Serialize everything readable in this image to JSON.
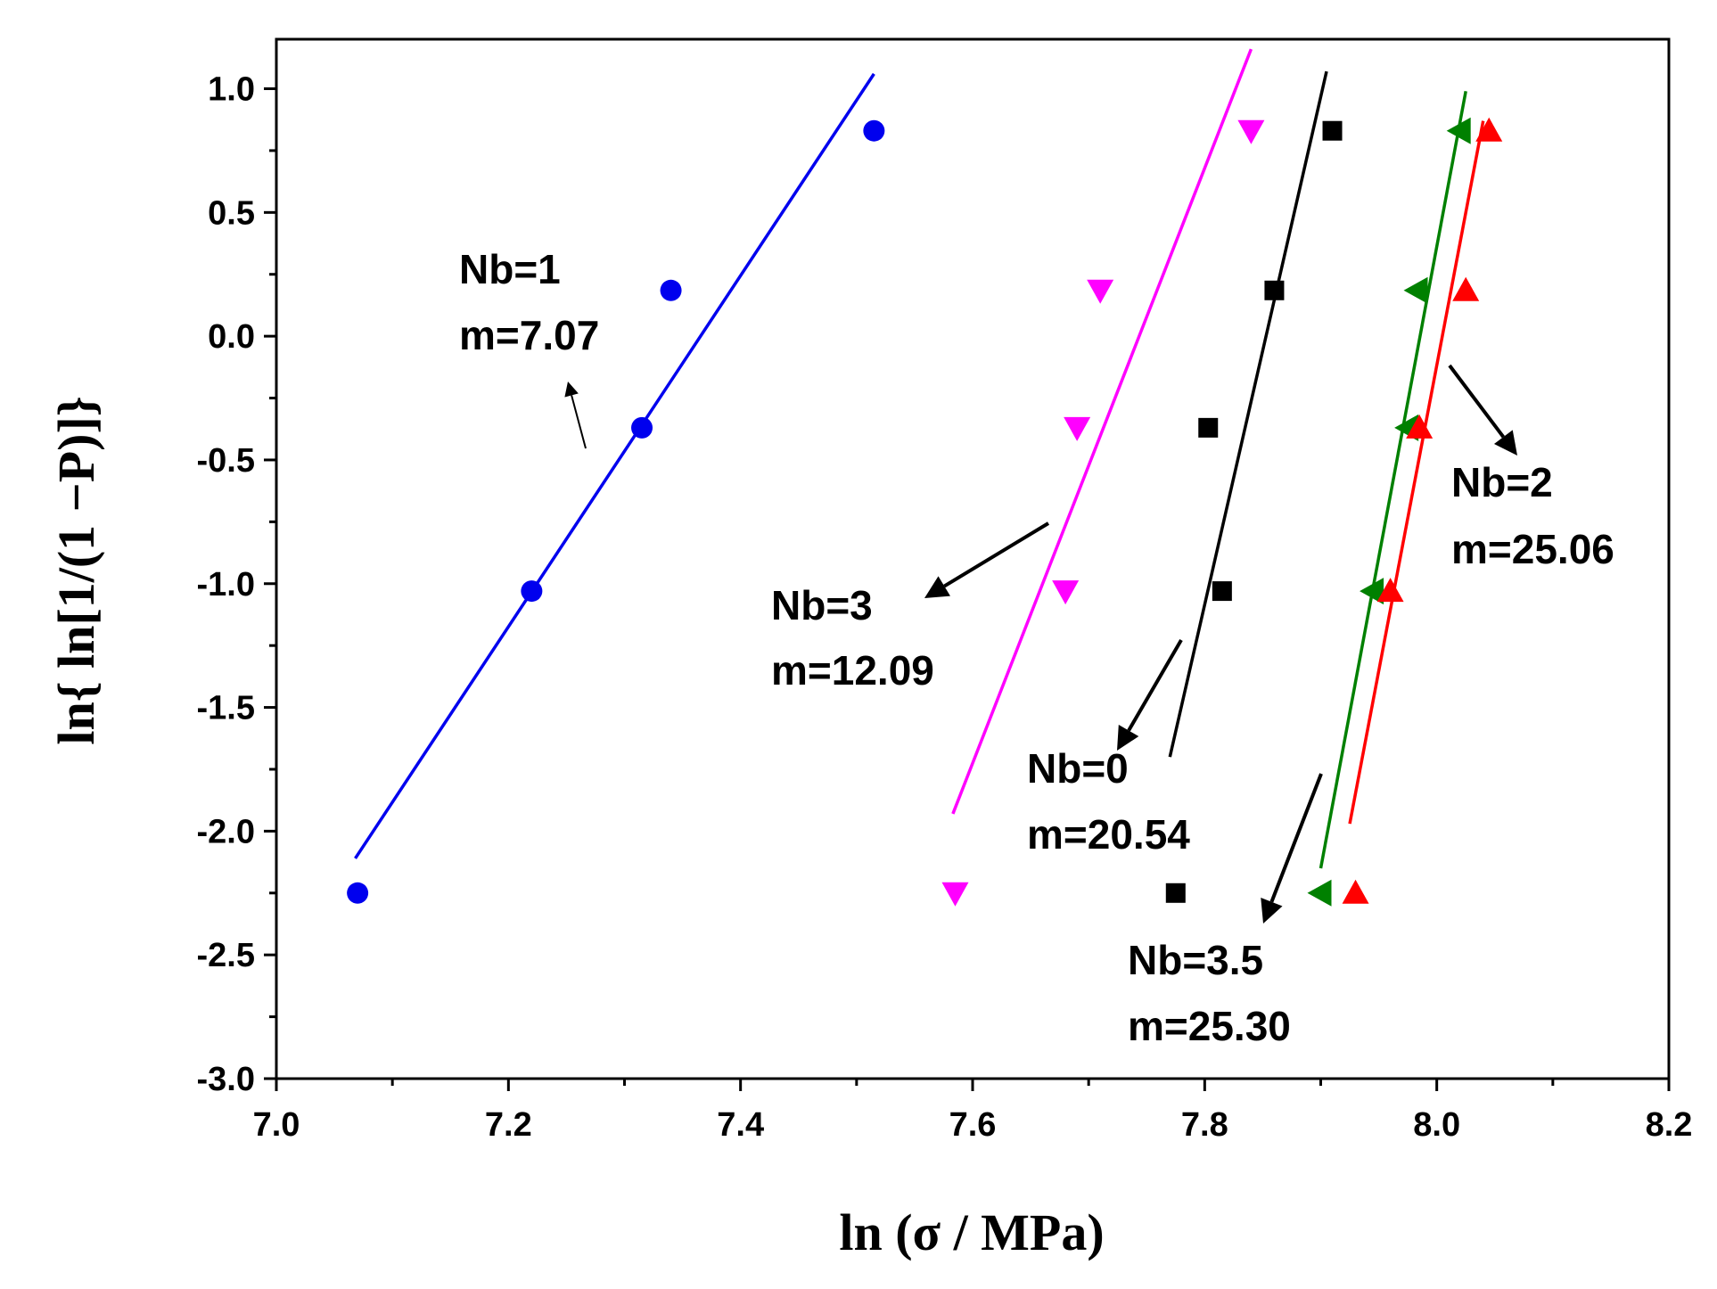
{
  "chart_data": {
    "type": "scatter",
    "xlabel": "ln (σ  / MPa)",
    "ylabel": "ln{ ln[1/(1 −P)]}",
    "xlim": [
      7.0,
      8.2
    ],
    "ylim": [
      -3.0,
      1.2
    ],
    "x_ticks": [
      {
        "value": 7.0,
        "label": "7.0"
      },
      {
        "value": 7.2,
        "label": "7.2"
      },
      {
        "value": 7.4,
        "label": "7.4"
      },
      {
        "value": 7.6,
        "label": "7.6"
      },
      {
        "value": 7.8,
        "label": "7.8"
      },
      {
        "value": 8.0,
        "label": "8.0"
      },
      {
        "value": 8.2,
        "label": "8.2"
      }
    ],
    "y_ticks": [
      {
        "value": 1.0,
        "label": "1.0"
      },
      {
        "value": 0.5,
        "label": "0.5"
      },
      {
        "value": 0.0,
        "label": "0.0"
      },
      {
        "value": -0.5,
        "label": "-0.5"
      },
      {
        "value": -1.0,
        "label": "-1.0"
      },
      {
        "value": -1.5,
        "label": "-1.5"
      },
      {
        "value": -2.0,
        "label": "-2.0"
      },
      {
        "value": -2.5,
        "label": "-2.5"
      },
      {
        "value": -3.0,
        "label": "-3.0"
      }
    ],
    "series": [
      {
        "name": "Nb=1",
        "modulus": "m=7.07",
        "color": "#0000ee",
        "marker": "circle",
        "x": [
          7.07,
          7.22,
          7.315,
          7.34,
          7.515
        ],
        "y": [
          -2.25,
          -1.03,
          -0.37,
          0.185,
          0.83
        ],
        "fit": {
          "x": [
            7.068,
            7.515
          ],
          "y": [
            -2.11,
            1.06
          ]
        }
      },
      {
        "name": "Nb=3",
        "modulus": "m=12.09",
        "color": "#ff00ff",
        "marker": "triangle-down",
        "x": [
          7.585,
          7.68,
          7.69,
          7.71,
          7.84
        ],
        "y": [
          -2.25,
          -1.03,
          -0.37,
          0.185,
          0.83
        ],
        "fit": {
          "x": [
            7.583,
            7.84
          ],
          "y": [
            -1.93,
            1.16
          ]
        }
      },
      {
        "name": "Nb=0",
        "modulus": "m=20.54",
        "color": "#000000",
        "marker": "square",
        "x": [
          7.775,
          7.815,
          7.803,
          7.86,
          7.91
        ],
        "y": [
          -2.25,
          -1.03,
          -0.37,
          0.185,
          0.83
        ],
        "fit": {
          "x": [
            7.77,
            7.905
          ],
          "y": [
            -1.7,
            1.07
          ]
        }
      },
      {
        "name": "Nb=3.5",
        "modulus": "m=25.30",
        "color": "#008000",
        "marker": "triangle-left",
        "x": [
          7.9,
          7.945,
          7.975,
          7.983,
          8.02
        ],
        "y": [
          -2.25,
          -1.03,
          -0.37,
          0.185,
          0.83
        ],
        "fit": {
          "x": [
            7.9,
            8.025
          ],
          "y": [
            -2.15,
            0.99
          ]
        }
      },
      {
        "name": "Nb=2",
        "modulus": "m=25.06",
        "color": "#ff0000",
        "marker": "triangle-up",
        "x": [
          7.93,
          7.96,
          7.985,
          8.025,
          8.045
        ],
        "y": [
          -2.25,
          -1.03,
          -0.37,
          0.185,
          0.83
        ],
        "fit": {
          "x": [
            7.925,
            8.04
          ],
          "y": [
            -1.97,
            0.87
          ]
        }
      }
    ],
    "annotations": [
      {
        "series": "Nb=1",
        "lines": [
          "Nb=1",
          "m=7.07"
        ]
      },
      {
        "series": "Nb=3",
        "lines": [
          "Nb=3",
          "m=12.09"
        ]
      },
      {
        "series": "Nb=0",
        "lines": [
          "Nb=0",
          "m=20.54"
        ]
      },
      {
        "series": "Nb=3.5",
        "lines": [
          "Nb=3.5",
          "m=25.30"
        ]
      },
      {
        "series": "Nb=2",
        "lines": [
          "Nb=2",
          "m=25.06"
        ]
      }
    ]
  }
}
